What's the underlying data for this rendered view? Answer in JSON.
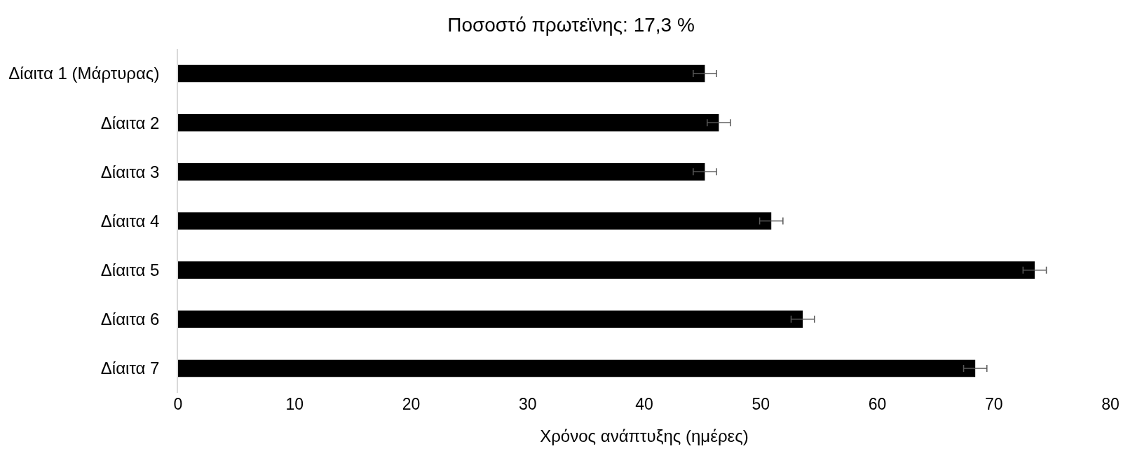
{
  "chart_data": {
    "type": "bar",
    "orientation": "horizontal",
    "title": "Ποσοστό πρωτεϊνης: 17,3 %",
    "xlabel": "Χρόνος ανάπτυξης (ημέρες)",
    "categories": [
      "Δίαιτα 1 (Μάρτυρας)",
      "Δίαιτα 2",
      "Δίαιτα 3",
      "Δίαιτα 4",
      "Δίαιτα 5",
      "Δίαιτα 6",
      "Δίαιτα 7"
    ],
    "values": [
      45.2,
      46.4,
      45.2,
      50.9,
      73.5,
      53.6,
      68.4
    ],
    "errors": [
      1.0,
      1.0,
      1.0,
      1.0,
      1.0,
      1.0,
      1.0
    ],
    "color": "#000000",
    "xlim": [
      0,
      80
    ],
    "xticks": [
      0,
      10,
      20,
      30,
      40,
      50,
      60,
      70,
      80
    ]
  }
}
